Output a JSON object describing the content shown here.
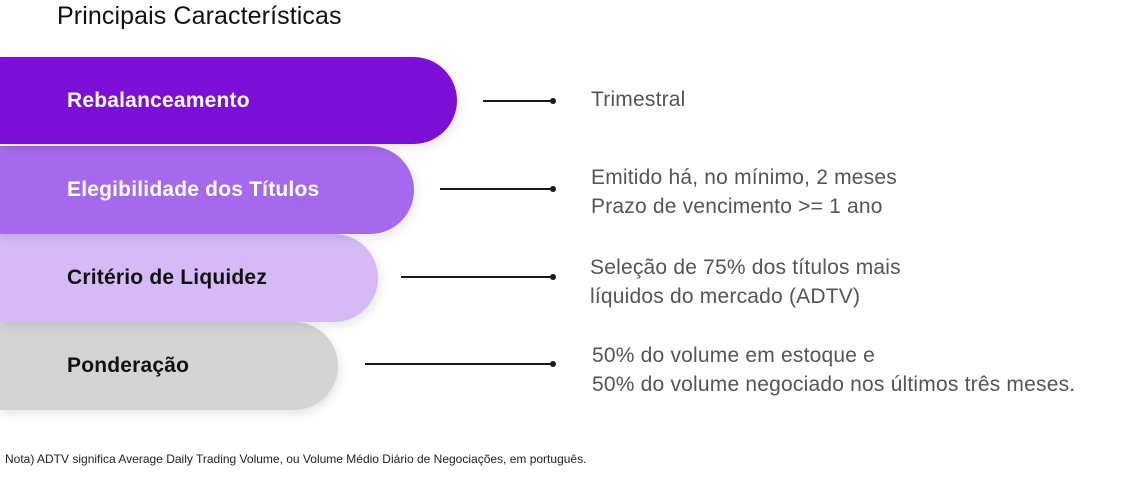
{
  "title": "Principais Características",
  "rows": [
    {
      "label": "Rebalanceamento",
      "color": "#7b0fd8",
      "text_color": "#ffffff",
      "lines": [
        "Trimestral"
      ]
    },
    {
      "label": "Elegibilidade dos Títulos",
      "color": "#a569ee",
      "text_color": "#ffffff",
      "lines": [
        "Emitido há, no mínimo, 2 meses",
        "Prazo de vencimento >= 1 ano"
      ]
    },
    {
      "label": "Critério de Liquidez",
      "color": "#d5baf5",
      "text_color": "#111111",
      "lines": [
        "Seleção de 75% dos títulos mais",
        "líquidos do mercado (ADTV)"
      ]
    },
    {
      "label": "Ponderação",
      "color": "#d4d4d4",
      "text_color": "#111111",
      "lines": [
        "50% do volume em estoque e",
        "50% do volume negociado nos últimos três meses."
      ]
    }
  ],
  "note": "Nota) ADTV significa Average Daily Trading Volume, ou Volume Médio Diário de Negociações, em português."
}
